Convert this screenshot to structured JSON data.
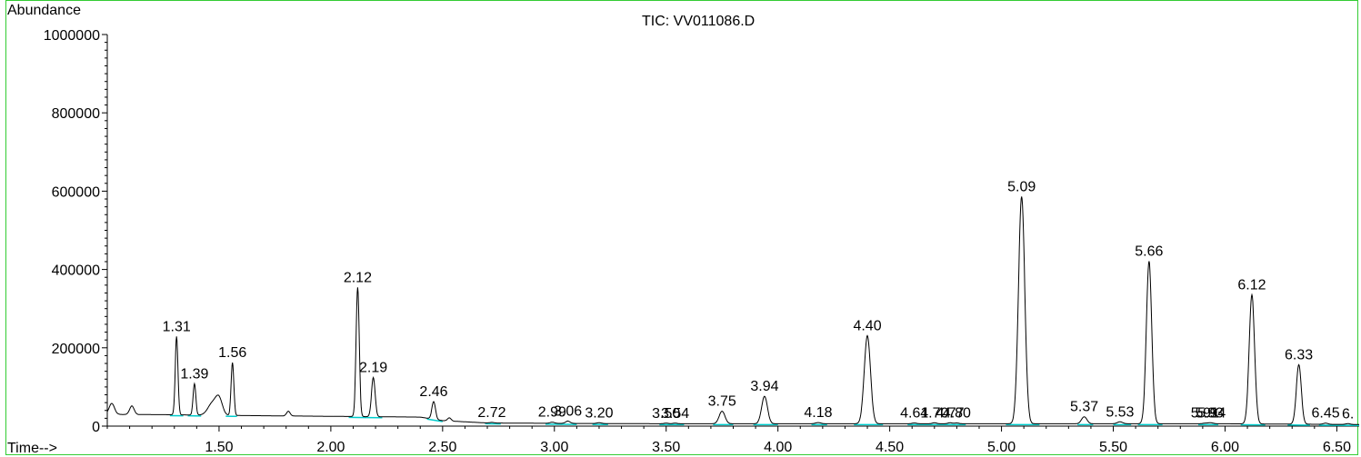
{
  "chart_data": {
    "type": "line",
    "title": "TIC: VV011086.D",
    "ylabel": "Abundance",
    "xlabel": "Time-->",
    "xlim": [
      1.0,
      6.6
    ],
    "ylim": [
      0,
      1000000
    ],
    "x_ticks": [
      "1.50",
      "2.00",
      "2.50",
      "3.00",
      "3.50",
      "4.00",
      "4.50",
      "5.00",
      "5.50",
      "6.00",
      "6.50"
    ],
    "y_ticks": [
      "0",
      "200000",
      "400000",
      "600000",
      "800000",
      "1000000"
    ],
    "baseline": [
      [
        1.0,
        30000
      ],
      [
        1.3,
        29000
      ],
      [
        1.6,
        27000
      ],
      [
        2.0,
        25000
      ],
      [
        2.4,
        23000
      ],
      [
        2.5,
        14000
      ],
      [
        2.7,
        8000
      ],
      [
        3.0,
        7000
      ],
      [
        3.5,
        6000
      ],
      [
        4.0,
        6000
      ],
      [
        4.5,
        6000
      ],
      [
        5.0,
        6000
      ],
      [
        5.5,
        6000
      ],
      [
        6.0,
        6000
      ],
      [
        6.62,
        4000
      ]
    ],
    "peaks": [
      {
        "rt": 1.02,
        "height": 28000,
        "width": 0.012
      },
      {
        "rt": 1.11,
        "height": 22000,
        "width": 0.01
      },
      {
        "rt": 1.31,
        "height": 200000,
        "width": 0.006,
        "label": "1.31"
      },
      {
        "rt": 1.39,
        "height": 80000,
        "width": 0.006,
        "label": "1.39"
      },
      {
        "rt": 1.47,
        "height": 30000,
        "width": 0.02
      },
      {
        "rt": 1.5,
        "height": 40000,
        "width": 0.015
      },
      {
        "rt": 1.56,
        "height": 135000,
        "width": 0.006,
        "label": "1.56"
      },
      {
        "rt": 1.81,
        "height": 12000,
        "width": 0.008
      },
      {
        "rt": 2.12,
        "height": 330000,
        "width": 0.007,
        "label": "2.12"
      },
      {
        "rt": 2.19,
        "height": 100000,
        "width": 0.008,
        "label": "2.19"
      },
      {
        "rt": 2.46,
        "height": 45000,
        "width": 0.008,
        "label": "2.46"
      },
      {
        "rt": 2.53,
        "height": 8000,
        "width": 0.008
      },
      {
        "rt": 2.72,
        "height": 1500,
        "width": 0.01,
        "label": "2.72"
      },
      {
        "rt": 2.99,
        "height": 3000,
        "width": 0.01,
        "label": "2.99"
      },
      {
        "rt": 3.06,
        "height": 6000,
        "width": 0.01,
        "label": "3.06"
      },
      {
        "rt": 3.2,
        "height": 2000,
        "width": 0.01,
        "label": "3.20"
      },
      {
        "rt": 3.5,
        "height": 1500,
        "width": 0.01,
        "label": "3.50"
      },
      {
        "rt": 3.54,
        "height": 1500,
        "width": 0.01,
        "label": "3.54"
      },
      {
        "rt": 3.75,
        "height": 32000,
        "width": 0.013,
        "label": "3.75"
      },
      {
        "rt": 3.94,
        "height": 70000,
        "width": 0.013,
        "label": "3.94"
      },
      {
        "rt": 4.18,
        "height": 3000,
        "width": 0.012,
        "label": "4.18"
      },
      {
        "rt": 4.4,
        "height": 225000,
        "width": 0.014,
        "label": "4.40"
      },
      {
        "rt": 4.61,
        "height": 2000,
        "width": 0.01,
        "label": "4.61"
      },
      {
        "rt": 4.7,
        "height": 2500,
        "width": 0.01,
        "label": "4.70"
      },
      {
        "rt": 4.77,
        "height": 2500,
        "width": 0.01,
        "label": "4.77"
      },
      {
        "rt": 4.8,
        "height": 2000,
        "width": 0.01,
        "label": "4.80"
      },
      {
        "rt": 5.09,
        "height": 580000,
        "width": 0.014,
        "label": "5.09"
      },
      {
        "rt": 5.37,
        "height": 18000,
        "width": 0.012,
        "label": "5.37"
      },
      {
        "rt": 5.53,
        "height": 5000,
        "width": 0.012,
        "label": "5.53"
      },
      {
        "rt": 5.66,
        "height": 415000,
        "width": 0.012,
        "label": "5.66"
      },
      {
        "rt": 5.91,
        "height": 1500,
        "width": 0.01,
        "label": "5.91"
      },
      {
        "rt": 5.93,
        "height": 1500,
        "width": 0.01,
        "label": "5.93"
      },
      {
        "rt": 5.94,
        "height": 1500,
        "width": 0.01,
        "label": "5.94"
      },
      {
        "rt": 6.12,
        "height": 330000,
        "width": 0.012,
        "label": "6.12"
      },
      {
        "rt": 6.33,
        "height": 152000,
        "width": 0.011,
        "label": "6.33"
      },
      {
        "rt": 6.45,
        "height": 3000,
        "width": 0.01,
        "label": "6.45"
      },
      {
        "rt": 6.55,
        "height": 2000,
        "width": 0.01,
        "label": "6."
      }
    ],
    "integration_baselines": [
      [
        1.28,
        1.34
      ],
      [
        1.36,
        1.42
      ],
      [
        1.53,
        1.58
      ],
      [
        2.08,
        2.16
      ],
      [
        2.16,
        2.23
      ],
      [
        2.43,
        2.5
      ],
      [
        2.69,
        2.76
      ],
      [
        2.96,
        3.1
      ],
      [
        3.17,
        3.24
      ],
      [
        3.47,
        3.58
      ],
      [
        3.71,
        3.8
      ],
      [
        3.89,
        4.0
      ],
      [
        4.15,
        4.22
      ],
      [
        4.34,
        4.47
      ],
      [
        4.58,
        4.84
      ],
      [
        5.02,
        5.17
      ],
      [
        5.34,
        5.41
      ],
      [
        5.5,
        5.58
      ],
      [
        5.61,
        5.72
      ],
      [
        5.88,
        5.97
      ],
      [
        6.07,
        6.18
      ],
      [
        6.28,
        6.38
      ],
      [
        6.42,
        6.6
      ]
    ],
    "colors": {
      "trace": "#000000",
      "integration": "#00cccc",
      "frame": "#33cc33"
    }
  }
}
